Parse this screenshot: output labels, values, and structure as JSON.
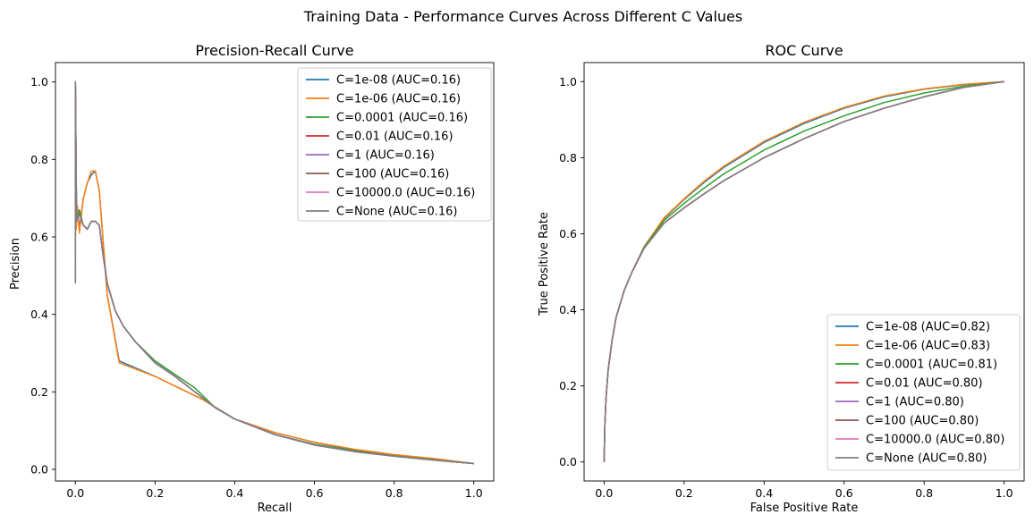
{
  "figure": {
    "title": "Training Data - Performance Curves Across Different C Values"
  },
  "colors": {
    "c_1e-08": "#1f77b4",
    "c_1e-06": "#ff7f0e",
    "c_0.0001": "#2ca02c",
    "c_0.01": "#d62728",
    "c_1": "#9467bd",
    "c_100": "#8c564b",
    "c_10000.0": "#e377c2",
    "c_None": "#7f7f7f"
  },
  "chart_data": [
    {
      "type": "line",
      "title": "Precision-Recall Curve",
      "xlabel": "Recall",
      "ylabel": "Precision",
      "xlim": [
        -0.05,
        1.05
      ],
      "ylim": [
        -0.03,
        1.05
      ],
      "xticks": [
        "0.0",
        "0.2",
        "0.4",
        "0.6",
        "0.8",
        "1.0"
      ],
      "yticks": [
        "0.0",
        "0.2",
        "0.4",
        "0.6",
        "0.8",
        "1.0"
      ],
      "grid": false,
      "legend_position": "top-right",
      "series": [
        {
          "name": "C=1e-08 (AUC=0.16)",
          "color": "#1f77b4",
          "x": [
            0.0,
            0.0,
            0.002,
            0.005,
            0.01,
            0.02,
            0.03,
            0.04,
            0.05,
            0.06,
            0.08,
            0.11,
            0.2,
            0.28,
            0.32,
            0.4,
            0.5,
            0.6,
            0.7,
            0.8,
            0.9,
            1.0
          ],
          "y": [
            0.48,
            1.0,
            0.62,
            0.68,
            0.62,
            0.7,
            0.74,
            0.76,
            0.77,
            0.72,
            0.45,
            0.28,
            0.24,
            0.2,
            0.18,
            0.13,
            0.095,
            0.07,
            0.05,
            0.037,
            0.027,
            0.015
          ]
        },
        {
          "name": "C=1e-06 (AUC=0.16)",
          "color": "#ff7f0e",
          "x": [
            0.0,
            0.0,
            0.002,
            0.005,
            0.01,
            0.02,
            0.03,
            0.04,
            0.05,
            0.06,
            0.08,
            0.11,
            0.2,
            0.28,
            0.32,
            0.4,
            0.5,
            0.6,
            0.7,
            0.8,
            0.9,
            1.0
          ],
          "y": [
            0.48,
            1.0,
            0.62,
            0.68,
            0.61,
            0.7,
            0.74,
            0.77,
            0.77,
            0.72,
            0.45,
            0.275,
            0.24,
            0.2,
            0.18,
            0.13,
            0.095,
            0.07,
            0.052,
            0.038,
            0.028,
            0.015
          ]
        },
        {
          "name": "C=0.0001 (AUC=0.16)",
          "color": "#2ca02c",
          "x": [
            0.0,
            0.0,
            0.003,
            0.01,
            0.02,
            0.03,
            0.04,
            0.05,
            0.06,
            0.07,
            0.08,
            0.1,
            0.12,
            0.15,
            0.2,
            0.25,
            0.3,
            0.35,
            0.4,
            0.5,
            0.6,
            0.7,
            0.8,
            0.9,
            1.0
          ],
          "y": [
            0.48,
            1.0,
            0.64,
            0.67,
            0.63,
            0.62,
            0.64,
            0.64,
            0.63,
            0.55,
            0.48,
            0.41,
            0.37,
            0.33,
            0.28,
            0.245,
            0.21,
            0.16,
            0.13,
            0.09,
            0.065,
            0.048,
            0.035,
            0.025,
            0.015
          ]
        },
        {
          "name": "C=0.01 (AUC=0.16)",
          "color": "#d62728",
          "x": [
            0.0,
            0.0,
            0.003,
            0.01,
            0.02,
            0.03,
            0.04,
            0.05,
            0.06,
            0.07,
            0.08,
            0.1,
            0.12,
            0.15,
            0.2,
            0.25,
            0.3,
            0.35,
            0.4,
            0.5,
            0.6,
            0.7,
            0.8,
            0.9,
            1.0
          ],
          "y": [
            0.48,
            1.0,
            0.64,
            0.66,
            0.63,
            0.62,
            0.64,
            0.64,
            0.63,
            0.55,
            0.48,
            0.41,
            0.37,
            0.33,
            0.275,
            0.24,
            0.2,
            0.16,
            0.13,
            0.09,
            0.063,
            0.046,
            0.034,
            0.024,
            0.015
          ]
        },
        {
          "name": "C=1 (AUC=0.16)",
          "color": "#9467bd",
          "x": [
            0.0,
            0.0,
            0.003,
            0.01,
            0.02,
            0.03,
            0.04,
            0.05,
            0.06,
            0.07,
            0.08,
            0.1,
            0.12,
            0.15,
            0.2,
            0.25,
            0.3,
            0.35,
            0.4,
            0.5,
            0.6,
            0.7,
            0.8,
            0.9,
            1.0
          ],
          "y": [
            0.48,
            1.0,
            0.64,
            0.66,
            0.63,
            0.62,
            0.64,
            0.64,
            0.63,
            0.55,
            0.48,
            0.41,
            0.37,
            0.33,
            0.275,
            0.24,
            0.2,
            0.16,
            0.13,
            0.09,
            0.063,
            0.046,
            0.034,
            0.024,
            0.015
          ]
        },
        {
          "name": "C=100 (AUC=0.16)",
          "color": "#8c564b",
          "x": [
            0.0,
            0.0,
            0.003,
            0.01,
            0.02,
            0.03,
            0.04,
            0.05,
            0.06,
            0.07,
            0.08,
            0.1,
            0.12,
            0.15,
            0.2,
            0.25,
            0.3,
            0.35,
            0.4,
            0.5,
            0.6,
            0.7,
            0.8,
            0.9,
            1.0
          ],
          "y": [
            0.48,
            1.0,
            0.64,
            0.66,
            0.63,
            0.62,
            0.64,
            0.64,
            0.63,
            0.55,
            0.48,
            0.41,
            0.37,
            0.33,
            0.275,
            0.24,
            0.2,
            0.16,
            0.13,
            0.09,
            0.063,
            0.046,
            0.034,
            0.024,
            0.015
          ]
        },
        {
          "name": "C=10000.0 (AUC=0.16)",
          "color": "#e377c2",
          "x": [
            0.0,
            0.0,
            0.003,
            0.01,
            0.02,
            0.03,
            0.04,
            0.05,
            0.06,
            0.07,
            0.08,
            0.1,
            0.12,
            0.15,
            0.2,
            0.25,
            0.3,
            0.35,
            0.4,
            0.5,
            0.6,
            0.7,
            0.8,
            0.9,
            1.0
          ],
          "y": [
            0.48,
            1.0,
            0.64,
            0.66,
            0.63,
            0.62,
            0.64,
            0.64,
            0.63,
            0.55,
            0.48,
            0.41,
            0.37,
            0.33,
            0.275,
            0.24,
            0.2,
            0.16,
            0.13,
            0.09,
            0.063,
            0.046,
            0.034,
            0.024,
            0.015
          ]
        },
        {
          "name": "C=None (AUC=0.16)",
          "color": "#7f7f7f",
          "x": [
            0.0,
            0.0,
            0.003,
            0.01,
            0.02,
            0.03,
            0.04,
            0.05,
            0.06,
            0.07,
            0.08,
            0.1,
            0.12,
            0.15,
            0.2,
            0.25,
            0.3,
            0.35,
            0.4,
            0.5,
            0.6,
            0.7,
            0.8,
            0.9,
            1.0
          ],
          "y": [
            0.48,
            1.0,
            0.64,
            0.66,
            0.63,
            0.62,
            0.64,
            0.64,
            0.63,
            0.55,
            0.48,
            0.41,
            0.37,
            0.33,
            0.275,
            0.24,
            0.2,
            0.16,
            0.13,
            0.09,
            0.063,
            0.046,
            0.034,
            0.024,
            0.015
          ]
        }
      ]
    },
    {
      "type": "line",
      "title": "ROC Curve",
      "xlabel": "False Positive Rate",
      "ylabel": "True Positive Rate",
      "xlim": [
        -0.05,
        1.05
      ],
      "ylim": [
        -0.05,
        1.05
      ],
      "xticks": [
        "0.0",
        "0.2",
        "0.4",
        "0.6",
        "0.8",
        "1.0"
      ],
      "yticks": [
        "0.0",
        "0.2",
        "0.4",
        "0.6",
        "0.8",
        "1.0"
      ],
      "grid": false,
      "legend_position": "bottom-right",
      "series": [
        {
          "name": "C=1e-08 (AUC=0.82)",
          "color": "#1f77b4",
          "x": [
            0.0,
            0.002,
            0.005,
            0.01,
            0.02,
            0.03,
            0.05,
            0.07,
            0.1,
            0.15,
            0.2,
            0.25,
            0.3,
            0.4,
            0.5,
            0.6,
            0.7,
            0.8,
            0.9,
            1.0
          ],
          "y": [
            0.0,
            0.1,
            0.17,
            0.24,
            0.32,
            0.38,
            0.45,
            0.5,
            0.565,
            0.64,
            0.69,
            0.735,
            0.775,
            0.84,
            0.89,
            0.93,
            0.96,
            0.98,
            0.992,
            1.0
          ]
        },
        {
          "name": "C=1e-06 (AUC=0.83)",
          "color": "#ff7f0e",
          "x": [
            0.0,
            0.002,
            0.005,
            0.01,
            0.02,
            0.03,
            0.05,
            0.07,
            0.1,
            0.15,
            0.2,
            0.25,
            0.3,
            0.4,
            0.5,
            0.6,
            0.7,
            0.8,
            0.9,
            1.0
          ],
          "y": [
            0.0,
            0.1,
            0.17,
            0.24,
            0.32,
            0.38,
            0.45,
            0.5,
            0.566,
            0.642,
            0.692,
            0.738,
            0.778,
            0.843,
            0.893,
            0.932,
            0.962,
            0.981,
            0.993,
            1.0
          ]
        },
        {
          "name": "C=0.0001 (AUC=0.81)",
          "color": "#2ca02c",
          "x": [
            0.0,
            0.002,
            0.005,
            0.01,
            0.02,
            0.03,
            0.05,
            0.07,
            0.1,
            0.15,
            0.2,
            0.25,
            0.3,
            0.4,
            0.5,
            0.6,
            0.7,
            0.8,
            0.9,
            1.0
          ],
          "y": [
            0.0,
            0.1,
            0.17,
            0.24,
            0.32,
            0.38,
            0.45,
            0.5,
            0.565,
            0.635,
            0.68,
            0.72,
            0.758,
            0.82,
            0.87,
            0.91,
            0.945,
            0.97,
            0.988,
            1.0
          ]
        },
        {
          "name": "C=0.01 (AUC=0.80)",
          "color": "#d62728",
          "x": [
            0.0,
            0.002,
            0.005,
            0.01,
            0.02,
            0.03,
            0.05,
            0.07,
            0.1,
            0.15,
            0.2,
            0.25,
            0.3,
            0.4,
            0.5,
            0.6,
            0.7,
            0.8,
            0.9,
            1.0
          ],
          "y": [
            0.0,
            0.1,
            0.17,
            0.24,
            0.32,
            0.38,
            0.45,
            0.5,
            0.562,
            0.628,
            0.668,
            0.705,
            0.74,
            0.8,
            0.85,
            0.895,
            0.93,
            0.96,
            0.985,
            1.0
          ]
        },
        {
          "name": "C=1 (AUC=0.80)",
          "color": "#9467bd",
          "x": [
            0.0,
            0.002,
            0.005,
            0.01,
            0.02,
            0.03,
            0.05,
            0.07,
            0.1,
            0.15,
            0.2,
            0.25,
            0.3,
            0.4,
            0.5,
            0.6,
            0.7,
            0.8,
            0.9,
            1.0
          ],
          "y": [
            0.0,
            0.1,
            0.17,
            0.24,
            0.32,
            0.38,
            0.45,
            0.5,
            0.562,
            0.628,
            0.668,
            0.705,
            0.74,
            0.8,
            0.85,
            0.895,
            0.93,
            0.96,
            0.985,
            1.0
          ]
        },
        {
          "name": "C=100 (AUC=0.80)",
          "color": "#8c564b",
          "x": [
            0.0,
            0.002,
            0.005,
            0.01,
            0.02,
            0.03,
            0.05,
            0.07,
            0.1,
            0.15,
            0.2,
            0.25,
            0.3,
            0.4,
            0.5,
            0.6,
            0.7,
            0.8,
            0.9,
            1.0
          ],
          "y": [
            0.0,
            0.1,
            0.17,
            0.24,
            0.32,
            0.38,
            0.45,
            0.5,
            0.562,
            0.628,
            0.668,
            0.705,
            0.74,
            0.8,
            0.85,
            0.895,
            0.93,
            0.96,
            0.985,
            1.0
          ]
        },
        {
          "name": "C=10000.0 (AUC=0.80)",
          "color": "#e377c2",
          "x": [
            0.0,
            0.002,
            0.005,
            0.01,
            0.02,
            0.03,
            0.05,
            0.07,
            0.1,
            0.15,
            0.2,
            0.25,
            0.3,
            0.4,
            0.5,
            0.6,
            0.7,
            0.8,
            0.9,
            1.0
          ],
          "y": [
            0.0,
            0.1,
            0.17,
            0.24,
            0.32,
            0.38,
            0.45,
            0.5,
            0.562,
            0.628,
            0.668,
            0.705,
            0.74,
            0.8,
            0.85,
            0.895,
            0.93,
            0.96,
            0.985,
            1.0
          ]
        },
        {
          "name": "C=None (AUC=0.80)",
          "color": "#7f7f7f",
          "x": [
            0.0,
            0.002,
            0.005,
            0.01,
            0.02,
            0.03,
            0.05,
            0.07,
            0.1,
            0.15,
            0.2,
            0.25,
            0.3,
            0.4,
            0.5,
            0.6,
            0.7,
            0.8,
            0.9,
            1.0
          ],
          "y": [
            0.0,
            0.1,
            0.17,
            0.24,
            0.32,
            0.38,
            0.45,
            0.5,
            0.562,
            0.628,
            0.668,
            0.705,
            0.74,
            0.8,
            0.85,
            0.895,
            0.93,
            0.96,
            0.985,
            1.0
          ]
        }
      ]
    }
  ]
}
